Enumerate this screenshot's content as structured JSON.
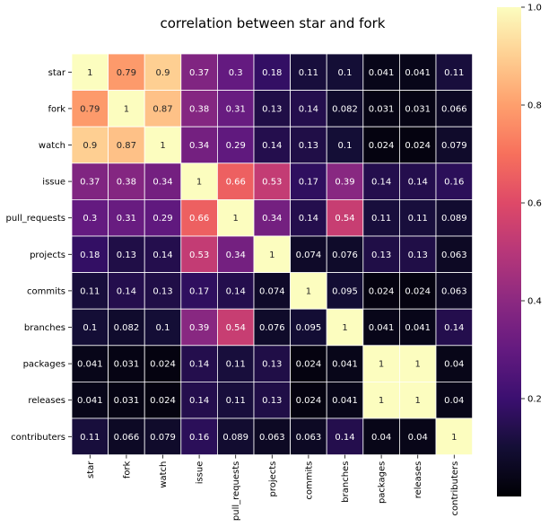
{
  "chart_data": {
    "type": "heatmap",
    "title": "correlation between star and fork",
    "xlabel": "",
    "ylabel": "",
    "rows": [
      "star",
      "fork",
      "watch",
      "issue",
      "pull_requests",
      "projects",
      "commits",
      "branches",
      "packages",
      "releases",
      "contributers"
    ],
    "columns": [
      "star",
      "fork",
      "watch",
      "issue",
      "pull_requests",
      "projects",
      "commits",
      "branches",
      "packages",
      "releases",
      "contributers"
    ],
    "values": [
      [
        1,
        0.79,
        0.9,
        0.37,
        0.3,
        0.18,
        0.11,
        0.1,
        0.041,
        0.041,
        0.11
      ],
      [
        0.79,
        1,
        0.87,
        0.38,
        0.31,
        0.13,
        0.14,
        0.082,
        0.031,
        0.031,
        0.066
      ],
      [
        0.9,
        0.87,
        1,
        0.34,
        0.29,
        0.14,
        0.13,
        0.1,
        0.024,
        0.024,
        0.079
      ],
      [
        0.37,
        0.38,
        0.34,
        1,
        0.66,
        0.53,
        0.17,
        0.39,
        0.14,
        0.14,
        0.16
      ],
      [
        0.3,
        0.31,
        0.29,
        0.66,
        1,
        0.34,
        0.14,
        0.54,
        0.11,
        0.11,
        0.089
      ],
      [
        0.18,
        0.13,
        0.14,
        0.53,
        0.34,
        1,
        0.074,
        0.076,
        0.13,
        0.13,
        0.063
      ],
      [
        0.11,
        0.14,
        0.13,
        0.17,
        0.14,
        0.074,
        1,
        0.095,
        0.024,
        0.024,
        0.063
      ],
      [
        0.1,
        0.082,
        0.1,
        0.39,
        0.54,
        0.076,
        0.095,
        1,
        0.041,
        0.041,
        0.14
      ],
      [
        0.041,
        0.031,
        0.024,
        0.14,
        0.11,
        0.13,
        0.024,
        0.041,
        1,
        1,
        0.04
      ],
      [
        0.041,
        0.031,
        0.024,
        0.14,
        0.11,
        0.13,
        0.024,
        0.041,
        1,
        1,
        0.04
      ],
      [
        0.11,
        0.066,
        0.079,
        0.16,
        0.089,
        0.063,
        0.063,
        0.14,
        0.04,
        0.04,
        1
      ]
    ],
    "colormap": "magma",
    "vmin": 0,
    "vmax": 1,
    "colorbar_ticks": [
      0.2,
      0.4,
      0.6,
      0.8,
      1.0
    ],
    "colorbar_tick_labels": [
      "0.2",
      "0.4",
      "0.6",
      "0.8",
      "1.0"
    ],
    "grid_line_color": "#ffffff",
    "annotated": true
  }
}
